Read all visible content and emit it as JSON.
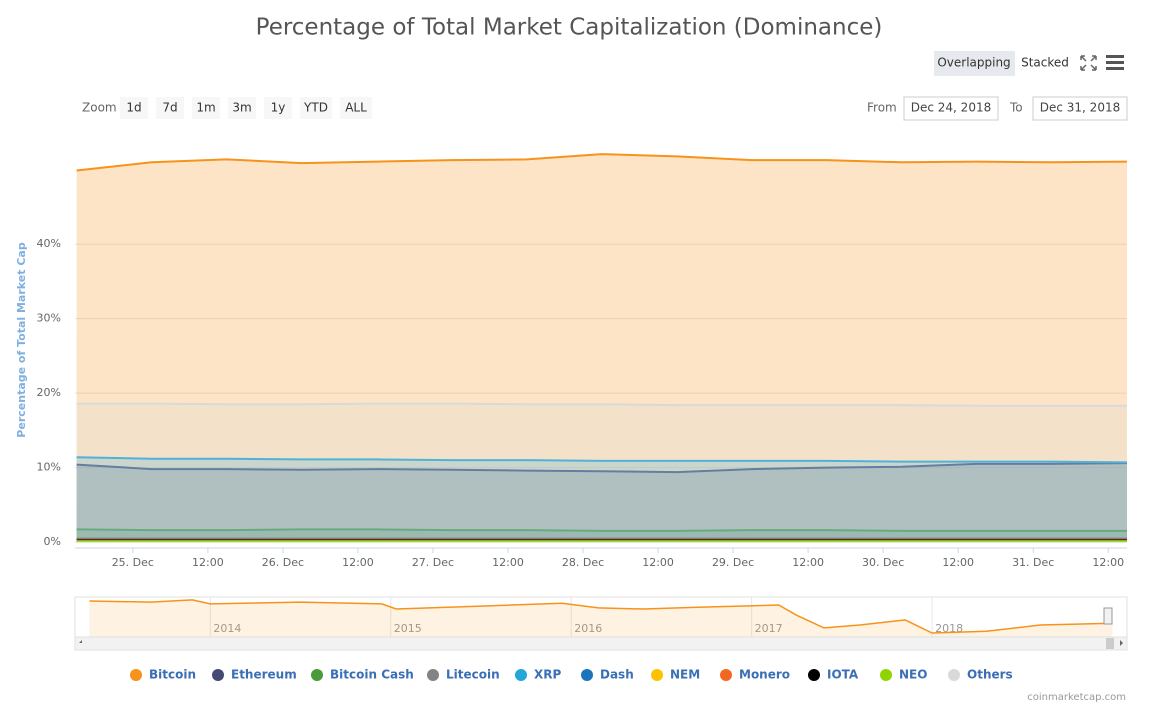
{
  "chart_data": {
    "type": "area",
    "title": "Percentage of Total Market Capitalization (Dominance)",
    "y_axis_title": "Percentage of Total Market Cap",
    "x": [
      "2018-12-24T15:00",
      "2018-12-25T03:00",
      "2018-12-25T15:00",
      "2018-12-26T03:00",
      "2018-12-26T15:00",
      "2018-12-27T03:00",
      "2018-12-27T15:00",
      "2018-12-28T03:00",
      "2018-12-28T15:00",
      "2018-12-29T03:00",
      "2018-12-29T15:00",
      "2018-12-30T03:00",
      "2018-12-30T15:00",
      "2018-12-31T03:00",
      "2018-12-31T15:00"
    ],
    "xlim": [
      "2018-12-24T14:45",
      "2018-12-31T15:00"
    ],
    "xticks": [
      {
        "value": "2018-12-25T00:00",
        "label": "25. Dec"
      },
      {
        "value": "2018-12-25T12:00",
        "label": "12:00"
      },
      {
        "value": "2018-12-26T00:00",
        "label": "26. Dec"
      },
      {
        "value": "2018-12-26T12:00",
        "label": "12:00"
      },
      {
        "value": "2018-12-27T00:00",
        "label": "27. Dec"
      },
      {
        "value": "2018-12-27T12:00",
        "label": "12:00"
      },
      {
        "value": "2018-12-28T00:00",
        "label": "28. Dec"
      },
      {
        "value": "2018-12-28T12:00",
        "label": "12:00"
      },
      {
        "value": "2018-12-29T00:00",
        "label": "29. Dec"
      },
      {
        "value": "2018-12-29T12:00",
        "label": "12:00"
      },
      {
        "value": "2018-12-30T00:00",
        "label": "30. Dec"
      },
      {
        "value": "2018-12-30T12:00",
        "label": "12:00"
      },
      {
        "value": "2018-12-31T00:00",
        "label": "31. Dec"
      },
      {
        "value": "2018-12-31T12:00",
        "label": "12:00"
      }
    ],
    "ylim": [
      -0.8,
      54
    ],
    "yticks": [
      {
        "value": 0,
        "label": "0%"
      },
      {
        "value": 10,
        "label": "10%"
      },
      {
        "value": 20,
        "label": "20%"
      },
      {
        "value": 30,
        "label": "30%"
      },
      {
        "value": 40,
        "label": "40%"
      }
    ],
    "grid": true,
    "legend": "bottom",
    "series": [
      {
        "name": "Bitcoin",
        "color": "#f7931a",
        "values": [
          49.9,
          51.0,
          51.4,
          50.9,
          51.1,
          51.3,
          51.4,
          52.1,
          51.8,
          51.3,
          51.3,
          51.0,
          51.1,
          51.0,
          51.1
        ]
      },
      {
        "name": "Ethereum",
        "color": "#454a75",
        "values": [
          10.4,
          9.8,
          9.8,
          9.7,
          9.8,
          9.7,
          9.6,
          9.5,
          9.4,
          9.8,
          10.0,
          10.1,
          10.5,
          10.5,
          10.6
        ]
      },
      {
        "name": "Bitcoin Cash",
        "color": "#4a9a3c",
        "values": [
          1.7,
          1.6,
          1.6,
          1.7,
          1.7,
          1.6,
          1.6,
          1.5,
          1.5,
          1.6,
          1.6,
          1.5,
          1.5,
          1.5,
          1.5
        ]
      },
      {
        "name": "Litecoin",
        "color": "#838383",
        "values": [
          0.5,
          0.5,
          0.5,
          0.5,
          0.5,
          0.5,
          0.5,
          0.5,
          0.5,
          0.5,
          0.5,
          0.5,
          0.5,
          0.5,
          0.5
        ]
      },
      {
        "name": "XRP",
        "color": "#23a6d8",
        "values": [
          11.4,
          11.2,
          11.2,
          11.1,
          11.1,
          11.0,
          11.0,
          10.9,
          10.9,
          10.9,
          10.9,
          10.8,
          10.8,
          10.8,
          10.7
        ]
      },
      {
        "name": "Dash",
        "color": "#1c75bc",
        "values": [
          0.4,
          0.4,
          0.4,
          0.4,
          0.4,
          0.4,
          0.4,
          0.4,
          0.4,
          0.4,
          0.4,
          0.4,
          0.4,
          0.4,
          0.4
        ]
      },
      {
        "name": "NEM",
        "color": "#fcc200",
        "values": [
          0.2,
          0.2,
          0.2,
          0.2,
          0.2,
          0.2,
          0.2,
          0.2,
          0.2,
          0.2,
          0.2,
          0.2,
          0.2,
          0.2,
          0.2
        ]
      },
      {
        "name": "Monero",
        "color": "#f26822",
        "values": [
          0.4,
          0.4,
          0.4,
          0.4,
          0.4,
          0.4,
          0.4,
          0.4,
          0.4,
          0.4,
          0.4,
          0.4,
          0.4,
          0.4,
          0.4
        ]
      },
      {
        "name": "IOTA",
        "color": "#000000",
        "values": [
          0.3,
          0.3,
          0.3,
          0.3,
          0.3,
          0.3,
          0.3,
          0.3,
          0.3,
          0.3,
          0.3,
          0.3,
          0.3,
          0.3,
          0.3
        ]
      },
      {
        "name": "NEO",
        "color": "#8fd400",
        "values": [
          0.1,
          0.1,
          0.1,
          0.1,
          0.1,
          0.1,
          0.1,
          0.1,
          0.1,
          0.1,
          0.1,
          0.1,
          0.1,
          0.1,
          0.1
        ]
      },
      {
        "name": "Others",
        "color": "#d9d9d9",
        "values": [
          18.6,
          18.6,
          18.5,
          18.5,
          18.6,
          18.6,
          18.5,
          18.5,
          18.4,
          18.4,
          18.4,
          18.4,
          18.3,
          18.3,
          18.3
        ]
      }
    ],
    "buttons": {
      "modes": [
        "Overlapping",
        "Stacked"
      ],
      "zoom_label": "Zoom",
      "zoom": [
        "1d",
        "7d",
        "1m",
        "3m",
        "1y",
        "YTD",
        "ALL"
      ],
      "from_label": "From",
      "from": "Dec 24, 2018",
      "to_label": "To",
      "to": "Dec 31, 2018"
    },
    "navigator": {
      "color": "#f7931a",
      "xlim": [
        2013.25,
        2019.08
      ],
      "ylim": [
        30,
        100
      ],
      "xticks": [
        2014,
        2015,
        2016,
        2017,
        2018
      ],
      "x": [
        2013.33,
        2013.67,
        2013.9,
        2014.0,
        2014.5,
        2014.95,
        2015.03,
        2015.5,
        2015.95,
        2016.15,
        2016.4,
        2016.7,
        2017.15,
        2017.25,
        2017.4,
        2017.6,
        2017.85,
        2018.0,
        2018.3,
        2018.6,
        2019.0
      ],
      "values": [
        93,
        91,
        95,
        88,
        91,
        88,
        79,
        84,
        89,
        81,
        79,
        82,
        86,
        68,
        46,
        51,
        60,
        37,
        40,
        51,
        54
      ]
    },
    "credit": "coinmarketcap.com"
  }
}
